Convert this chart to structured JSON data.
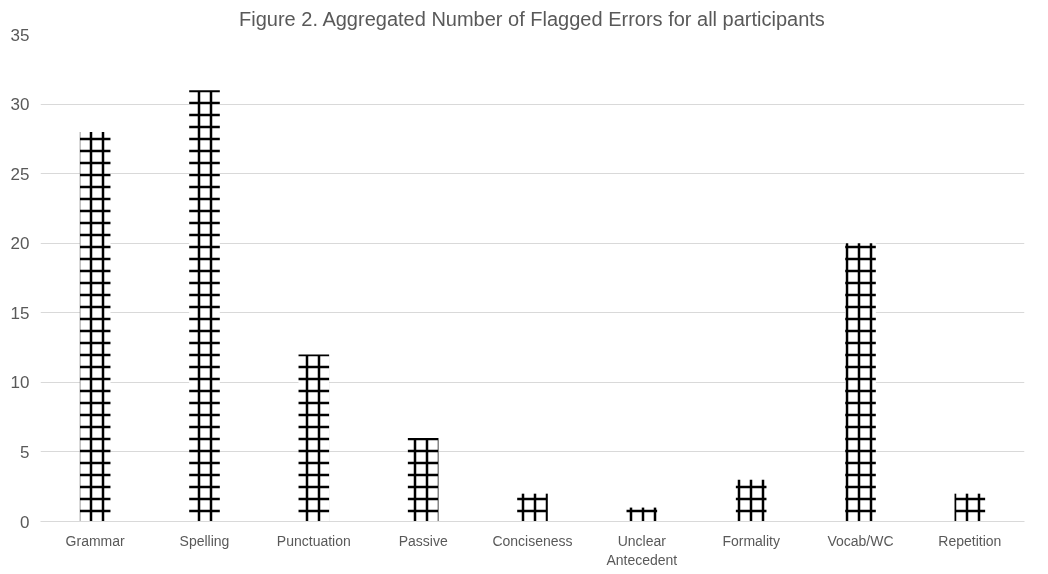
{
  "chart_data": {
    "type": "bar",
    "title": "Figure 2. Aggregated Number of Flagged Errors for all participants",
    "categories": [
      "Grammar",
      "Spelling",
      "Punctuation",
      "Passive",
      "Conciseness",
      "Unclear Antecedent",
      "Formality",
      "Vocab/WC",
      "Repetition"
    ],
    "values": [
      28,
      31,
      12,
      6,
      2,
      1,
      3,
      20,
      2
    ],
    "color": "#000000",
    "ylim": [
      0,
      35
    ],
    "yticks": [
      0,
      5,
      10,
      15,
      20,
      25,
      30,
      35
    ],
    "grid": "y"
  }
}
